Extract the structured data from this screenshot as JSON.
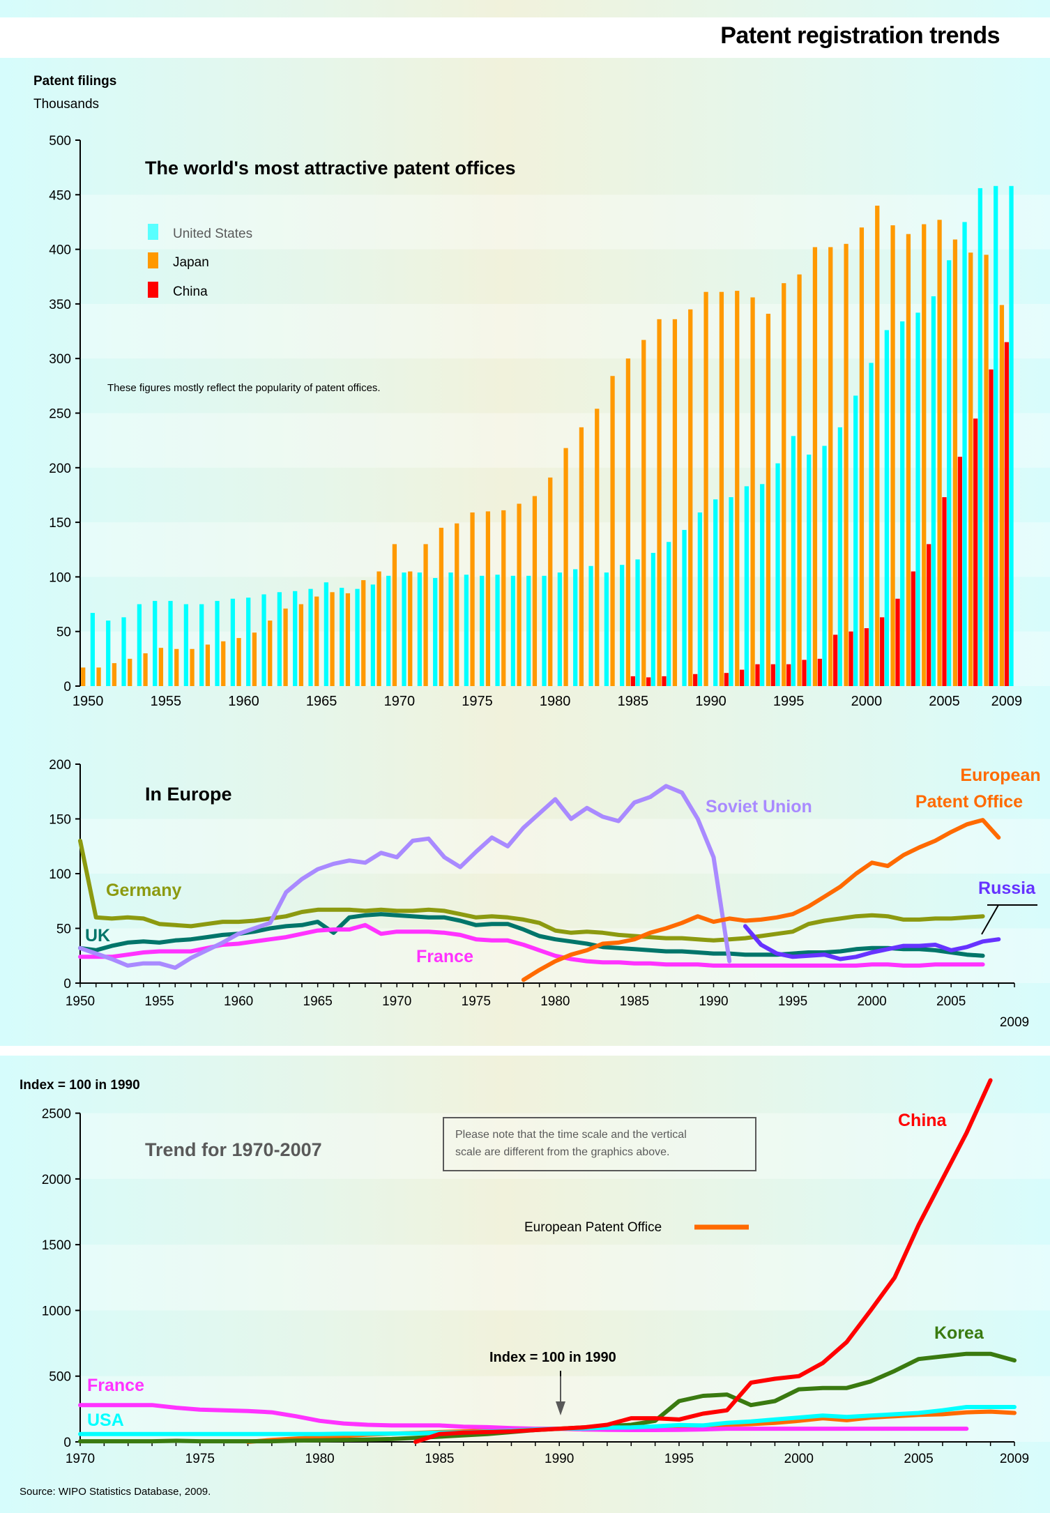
{
  "page_title": "Patent registration trends",
  "source": "Source: WIPO Statistics Database, 2009.",
  "colors": {
    "us": "#00ffff",
    "japan": "#ff9900",
    "china": "#ff0000",
    "germany": "#8c9a10",
    "uk": "#00756a",
    "france": "#ff33ff",
    "soviet": "#a98aff",
    "russia": "#6633ff",
    "epo": "#ff6a00",
    "korea": "#3a7a10"
  },
  "chart_data": [
    {
      "type": "bar",
      "title": "The world's most attractive patent offices",
      "ylabel_line1": "Patent filings",
      "ylabel_line2": "Thousands",
      "note": "These figures mostly reflect the popularity of patent offices.",
      "ylim": [
        0,
        500
      ],
      "yticks": [
        0,
        50,
        100,
        150,
        200,
        250,
        300,
        350,
        400,
        450,
        500
      ],
      "xtick_labels": [
        "1950",
        "1955",
        "1960",
        "1965",
        "1970",
        "1975",
        "1980",
        "1985",
        "1990",
        "1995",
        "2000",
        "2005",
        "2009"
      ],
      "legend": [
        "United States",
        "Japan",
        "China"
      ],
      "legend_position": "top-left",
      "years": [
        1950,
        1951,
        1952,
        1953,
        1954,
        1955,
        1956,
        1957,
        1958,
        1959,
        1960,
        1961,
        1962,
        1963,
        1964,
        1965,
        1966,
        1967,
        1968,
        1969,
        1970,
        1971,
        1972,
        1973,
        1974,
        1975,
        1976,
        1977,
        1978,
        1979,
        1980,
        1981,
        1982,
        1983,
        1984,
        1985,
        1986,
        1987,
        1988,
        1989,
        1990,
        1991,
        1992,
        1993,
        1994,
        1995,
        1996,
        1997,
        1998,
        1999,
        2000,
        2001,
        2002,
        2003,
        2004,
        2005,
        2006,
        2007,
        2008,
        2009
      ],
      "series": [
        {
          "name": "United States",
          "values": [
            67,
            60,
            63,
            75,
            78,
            78,
            75,
            75,
            78,
            80,
            81,
            84,
            86,
            87,
            89,
            95,
            90,
            89,
            93,
            101,
            104,
            104,
            99,
            104,
            102,
            101,
            102,
            101,
            101,
            101,
            104,
            107,
            110,
            104,
            111,
            116,
            122,
            132,
            143,
            159,
            171,
            173,
            183,
            185,
            204,
            229,
            212,
            220,
            237,
            266,
            296,
            326,
            334,
            342,
            357,
            390,
            425,
            456,
            458,
            458
          ]
        },
        {
          "name": "Japan",
          "values": [
            17,
            17,
            21,
            25,
            30,
            35,
            34,
            34,
            38,
            41,
            44,
            49,
            60,
            71,
            75,
            82,
            86,
            85,
            97,
            105,
            130,
            105,
            130,
            145,
            149,
            159,
            160,
            161,
            167,
            174,
            191,
            218,
            237,
            254,
            284,
            300,
            317,
            336,
            336,
            345,
            361,
            361,
            362,
            356,
            341,
            369,
            377,
            402,
            402,
            405,
            420,
            440,
            422,
            414,
            423,
            427,
            409,
            397,
            395,
            349
          ]
        },
        {
          "name": "China",
          "values": [
            0,
            0,
            0,
            0,
            0,
            0,
            0,
            0,
            0,
            0,
            0,
            0,
            0,
            0,
            0,
            0,
            0,
            0,
            0,
            0,
            0,
            0,
            0,
            0,
            0,
            0,
            0,
            0,
            0,
            0,
            0,
            0,
            0,
            0,
            0,
            9,
            8,
            9,
            0,
            11,
            0,
            12,
            15,
            20,
            20,
            20,
            24,
            25,
            47,
            50,
            53,
            63,
            80,
            105,
            130,
            173,
            210,
            245,
            290,
            315
          ]
        }
      ]
    },
    {
      "type": "line",
      "title": "In Europe",
      "ylim": [
        0,
        200
      ],
      "yticks": [
        0,
        50,
        100,
        150,
        200
      ],
      "xtick_labels": [
        "1950",
        "1955",
        "1960",
        "1965",
        "1970",
        "1975",
        "1980",
        "1985",
        "1990",
        "1995",
        "2000",
        "2005"
      ],
      "x_end_label": "2009",
      "series": [
        {
          "name": "Germany",
          "label": "Germany",
          "x_start": 1950,
          "values": [
            130,
            60,
            59,
            60,
            59,
            54,
            53,
            52,
            54,
            56,
            56,
            57,
            59,
            61,
            65,
            67,
            67,
            67,
            66,
            67,
            66,
            66,
            67,
            66,
            63,
            60,
            61,
            60,
            58,
            55,
            48,
            46,
            47,
            46,
            44,
            43,
            42,
            41,
            41,
            40,
            39,
            40,
            41,
            43,
            45,
            47,
            54,
            57,
            59,
            61,
            62,
            61,
            58,
            58,
            59,
            59,
            60,
            61
          ]
        },
        {
          "name": "UK",
          "label": "UK",
          "x_start": 1950,
          "values": [
            32,
            30,
            34,
            37,
            38,
            37,
            39,
            40,
            42,
            44,
            45,
            47,
            50,
            52,
            53,
            56,
            46,
            60,
            62,
            63,
            62,
            61,
            60,
            60,
            57,
            53,
            54,
            54,
            49,
            43,
            40,
            38,
            36,
            33,
            32,
            31,
            30,
            29,
            29,
            28,
            27,
            27,
            26,
            26,
            26,
            27,
            28,
            28,
            29,
            31,
            32,
            32,
            31,
            31,
            30,
            28,
            26,
            25
          ]
        },
        {
          "name": "France",
          "label": "France",
          "x_start": 1950,
          "values": [
            24,
            24,
            24,
            26,
            28,
            29,
            29,
            29,
            32,
            35,
            36,
            38,
            40,
            42,
            45,
            48,
            49,
            49,
            53,
            45,
            47,
            47,
            47,
            46,
            44,
            40,
            39,
            39,
            35,
            30,
            25,
            22,
            20,
            19,
            19,
            18,
            18,
            17,
            17,
            17,
            16,
            16,
            16,
            16,
            16,
            16,
            16,
            16,
            16,
            16,
            17,
            17,
            16,
            16,
            17,
            17,
            17,
            17
          ]
        },
        {
          "name": "Soviet Union",
          "label": "Soviet Union",
          "x_start": 1950,
          "values": [
            32,
            27,
            22,
            16,
            18,
            18,
            14,
            23,
            30,
            37,
            45,
            50,
            55,
            83,
            95,
            104,
            109,
            112,
            110,
            119,
            115,
            130,
            132,
            115,
            106,
            120,
            133,
            125,
            142,
            155,
            168,
            150,
            160,
            152,
            148,
            165,
            170,
            180,
            174,
            150,
            115,
            20
          ]
        },
        {
          "name": "Russia",
          "label": "Russia",
          "x_start": 1992,
          "values": [
            52,
            35,
            27,
            24,
            25,
            26,
            22,
            24,
            28,
            31,
            34,
            34,
            35,
            30,
            33,
            38,
            40
          ]
        },
        {
          "name": "European Patent Office",
          "label_line1": "European",
          "label_line2": "Patent Office",
          "x_start": 1978,
          "values": [
            3,
            12,
            20,
            26,
            30,
            36,
            37,
            40,
            46,
            50,
            55,
            61,
            56,
            59,
            57,
            58,
            60,
            63,
            70,
            79,
            88,
            100,
            110,
            107,
            117,
            124,
            130,
            138,
            145,
            149,
            133
          ]
        }
      ]
    },
    {
      "type": "line",
      "title": "Trend for 1970-2007",
      "ylabel": "Index = 100 in 1990",
      "note": "Please note that the time scale and the vertical scale are different from the graphics above.",
      "annotation": "Index = 100 in 1990",
      "legend_epo": "European Patent Office",
      "ylim": [
        0,
        2800
      ],
      "yticks": [
        0,
        500,
        1000,
        1500,
        2000,
        2500
      ],
      "ytick_labels": [
        "0",
        "500",
        "1000",
        "1500",
        "2000",
        "2500"
      ],
      "xtick_labels": [
        "1970",
        "1975",
        "1980",
        "1985",
        "1990",
        "1995",
        "2000",
        "2005",
        "2009"
      ],
      "series": [
        {
          "name": "France",
          "label": "France",
          "x_start": 1970,
          "values": [
            280,
            280,
            280,
            280,
            260,
            245,
            240,
            235,
            225,
            195,
            160,
            140,
            130,
            125,
            125,
            125,
            115,
            112,
            105,
            100,
            100,
            95,
            92,
            90,
            90,
            92,
            95,
            100,
            100,
            100,
            100,
            100,
            100,
            100,
            100,
            100,
            100,
            100
          ]
        },
        {
          "name": "USA",
          "label": "USA",
          "x_start": 1970,
          "values": [
            60,
            60,
            60,
            60,
            60,
            60,
            60,
            60,
            60,
            60,
            60,
            62,
            62,
            63,
            65,
            70,
            72,
            78,
            85,
            95,
            100,
            102,
            108,
            110,
            118,
            128,
            125,
            145,
            155,
            170,
            185,
            200,
            190,
            200,
            210,
            220,
            240,
            265,
            265,
            265
          ]
        },
        {
          "name": "Korea",
          "label": "Korea",
          "x_start": 1970,
          "values": [
            5,
            5,
            5,
            5,
            8,
            5,
            5,
            5,
            5,
            10,
            12,
            15,
            18,
            22,
            30,
            40,
            50,
            60,
            75,
            90,
            100,
            110,
            120,
            130,
            160,
            310,
            350,
            360,
            280,
            310,
            400,
            410,
            410,
            460,
            540,
            630,
            650,
            670,
            670,
            620
          ]
        },
        {
          "name": "China",
          "label": "China",
          "x_start": 1984,
          "values": [
            0,
            60,
            70,
            75,
            80,
            90,
            100,
            110,
            130,
            180,
            180,
            170,
            215,
            240,
            450,
            480,
            500,
            600,
            760,
            1000,
            1250,
            1650,
            2000,
            2350,
            2750
          ]
        },
        {
          "name": "European Patent Office",
          "x_start": 1977,
          "values": [
            0,
            15,
            25,
            35,
            45,
            55,
            62,
            68,
            75,
            80,
            85,
            92,
            98,
            100,
            95,
            95,
            100,
            110,
            115,
            120,
            130,
            135,
            145,
            160,
            180,
            165,
            185,
            195,
            205,
            210,
            225,
            230,
            220
          ]
        }
      ]
    }
  ]
}
